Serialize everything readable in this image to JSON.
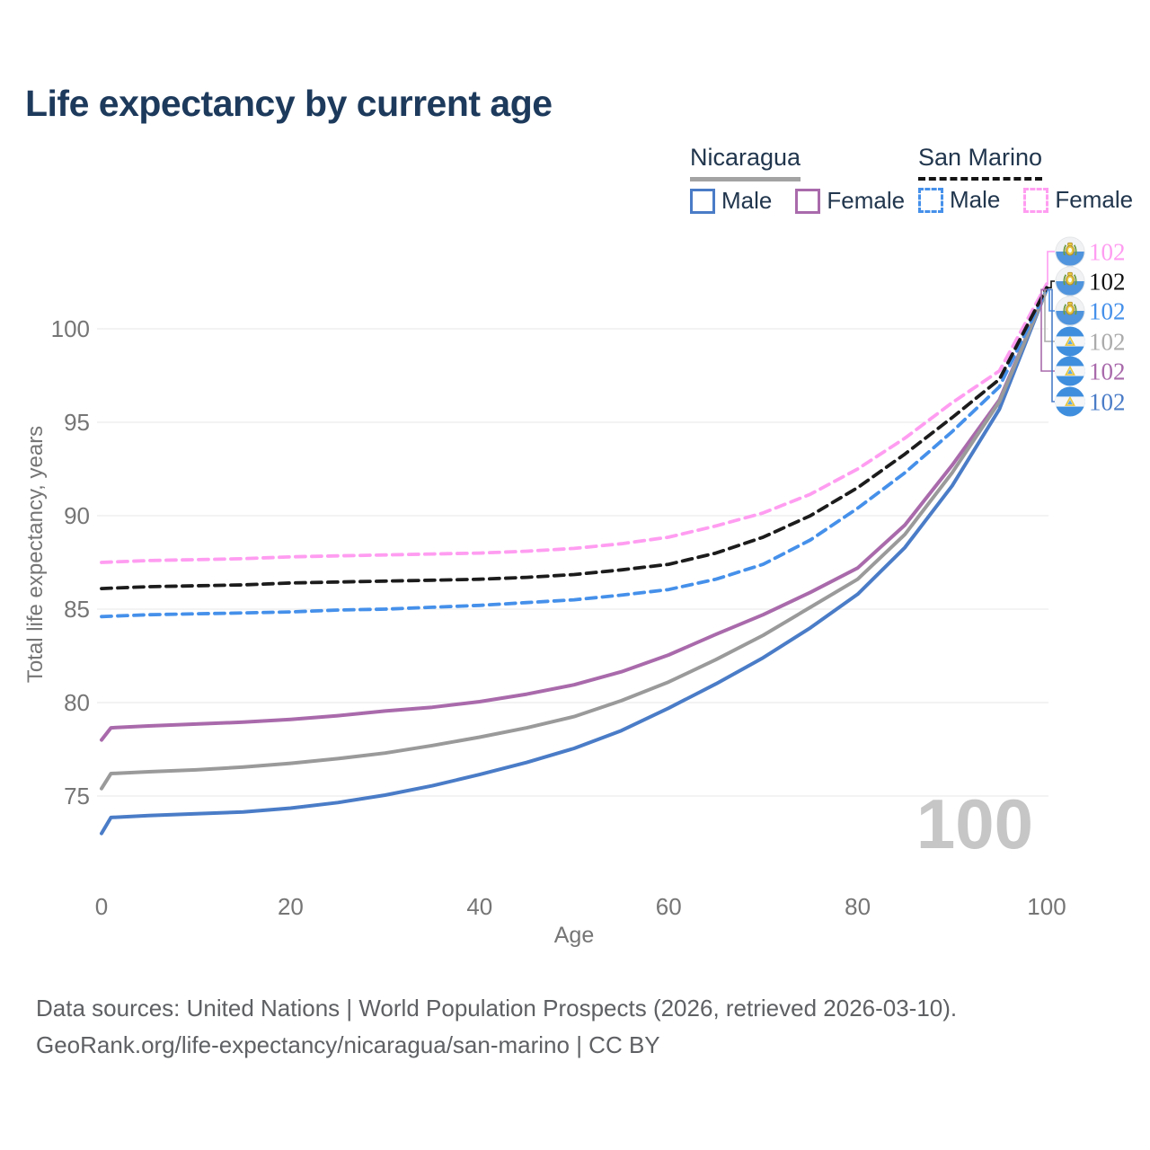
{
  "title": "Life expectancy by current age",
  "legend": {
    "groups": [
      {
        "label": "Nicaragua",
        "line_style": "solid",
        "underline_color": "#a3a3a3",
        "items": [
          {
            "label": "Male"
          },
          {
            "label": "Female"
          }
        ]
      },
      {
        "label": "San Marino",
        "line_style": "dashed",
        "underline_color": "#141414",
        "items": [
          {
            "label": "Male"
          },
          {
            "label": "Female"
          }
        ]
      }
    ]
  },
  "chart_data": {
    "type": "line",
    "title": "Life expectancy by current age",
    "xlabel": "Age",
    "ylabel": "Total life expectancy, years",
    "xlim": [
      0,
      100
    ],
    "ylim": [
      72.5,
      103
    ],
    "x_ticks": [
      0,
      20,
      40,
      60,
      80,
      100
    ],
    "y_ticks": [
      75,
      80,
      85,
      90,
      95,
      100
    ],
    "grid": "horizontal",
    "legend_position": "top-right",
    "series": [
      {
        "name": "Nicaragua Male",
        "country": "Nicaragua",
        "sex": "Male",
        "color": "#4a7cc7",
        "dash": false,
        "points": [
          [
            0,
            73.0
          ],
          [
            1,
            73.85
          ],
          [
            5,
            73.95
          ],
          [
            10,
            74.05
          ],
          [
            15,
            74.15
          ],
          [
            20,
            74.35
          ],
          [
            25,
            74.65
          ],
          [
            30,
            75.05
          ],
          [
            35,
            75.55
          ],
          [
            40,
            76.15
          ],
          [
            45,
            76.8
          ],
          [
            50,
            77.55
          ],
          [
            55,
            78.5
          ],
          [
            60,
            79.7
          ],
          [
            65,
            81.0
          ],
          [
            70,
            82.4
          ],
          [
            75,
            84.0
          ],
          [
            80,
            85.8
          ],
          [
            85,
            88.3
          ],
          [
            90,
            91.6
          ],
          [
            95,
            95.7
          ],
          [
            100,
            102.1
          ]
        ]
      },
      {
        "name": "Nicaragua Female",
        "country": "Nicaragua",
        "sex": "Female",
        "color": "#a96aab",
        "dash": false,
        "points": [
          [
            0,
            78.0
          ],
          [
            1,
            78.65
          ],
          [
            5,
            78.75
          ],
          [
            10,
            78.85
          ],
          [
            15,
            78.95
          ],
          [
            20,
            79.1
          ],
          [
            25,
            79.3
          ],
          [
            30,
            79.55
          ],
          [
            35,
            79.75
          ],
          [
            40,
            80.05
          ],
          [
            45,
            80.45
          ],
          [
            50,
            80.95
          ],
          [
            55,
            81.65
          ],
          [
            60,
            82.55
          ],
          [
            65,
            83.65
          ],
          [
            70,
            84.7
          ],
          [
            75,
            85.9
          ],
          [
            80,
            87.2
          ],
          [
            85,
            89.5
          ],
          [
            90,
            92.7
          ],
          [
            95,
            96.2
          ],
          [
            100,
            102.1
          ]
        ]
      },
      {
        "name": "Nicaragua Total",
        "country": "Nicaragua",
        "sex": "Both",
        "color": "#9a9a9a",
        "dash": false,
        "points": [
          [
            0,
            75.4
          ],
          [
            1,
            76.2
          ],
          [
            5,
            76.3
          ],
          [
            10,
            76.4
          ],
          [
            15,
            76.55
          ],
          [
            20,
            76.75
          ],
          [
            25,
            77.0
          ],
          [
            30,
            77.3
          ],
          [
            35,
            77.7
          ],
          [
            40,
            78.15
          ],
          [
            45,
            78.65
          ],
          [
            50,
            79.25
          ],
          [
            55,
            80.1
          ],
          [
            60,
            81.1
          ],
          [
            65,
            82.3
          ],
          [
            70,
            83.6
          ],
          [
            75,
            85.1
          ],
          [
            80,
            86.6
          ],
          [
            85,
            89.0
          ],
          [
            90,
            92.3
          ],
          [
            95,
            96.1
          ],
          [
            100,
            102.1
          ]
        ]
      },
      {
        "name": "San Marino Male",
        "country": "San Marino",
        "sex": "Male",
        "color": "#4590ea",
        "dash": true,
        "points": [
          [
            0,
            84.6
          ],
          [
            5,
            84.7
          ],
          [
            10,
            84.75
          ],
          [
            15,
            84.8
          ],
          [
            20,
            84.85
          ],
          [
            25,
            84.95
          ],
          [
            30,
            85.0
          ],
          [
            35,
            85.1
          ],
          [
            40,
            85.2
          ],
          [
            45,
            85.35
          ],
          [
            50,
            85.5
          ],
          [
            55,
            85.75
          ],
          [
            60,
            86.05
          ],
          [
            65,
            86.6
          ],
          [
            70,
            87.4
          ],
          [
            75,
            88.7
          ],
          [
            80,
            90.4
          ],
          [
            85,
            92.3
          ],
          [
            90,
            94.5
          ],
          [
            95,
            96.9
          ],
          [
            100,
            102.1
          ]
        ]
      },
      {
        "name": "San Marino Female",
        "country": "San Marino",
        "sex": "Female",
        "color": "#ff9df1",
        "dash": true,
        "points": [
          [
            0,
            87.5
          ],
          [
            5,
            87.6
          ],
          [
            10,
            87.65
          ],
          [
            15,
            87.7
          ],
          [
            20,
            87.8
          ],
          [
            25,
            87.85
          ],
          [
            30,
            87.9
          ],
          [
            35,
            87.95
          ],
          [
            40,
            88.0
          ],
          [
            45,
            88.1
          ],
          [
            50,
            88.25
          ],
          [
            55,
            88.5
          ],
          [
            60,
            88.85
          ],
          [
            65,
            89.45
          ],
          [
            70,
            90.15
          ],
          [
            75,
            91.15
          ],
          [
            80,
            92.5
          ],
          [
            85,
            94.15
          ],
          [
            90,
            96.05
          ],
          [
            95,
            97.75
          ],
          [
            100,
            102.4
          ]
        ]
      },
      {
        "name": "San Marino Total",
        "country": "San Marino",
        "sex": "Both",
        "color": "#1c1c1c",
        "dash": true,
        "points": [
          [
            0,
            86.1
          ],
          [
            5,
            86.2
          ],
          [
            10,
            86.25
          ],
          [
            15,
            86.3
          ],
          [
            20,
            86.4
          ],
          [
            25,
            86.45
          ],
          [
            30,
            86.5
          ],
          [
            35,
            86.55
          ],
          [
            40,
            86.6
          ],
          [
            45,
            86.7
          ],
          [
            50,
            86.85
          ],
          [
            55,
            87.1
          ],
          [
            60,
            87.4
          ],
          [
            65,
            88.0
          ],
          [
            70,
            88.85
          ],
          [
            75,
            90.0
          ],
          [
            80,
            91.5
          ],
          [
            85,
            93.3
          ],
          [
            90,
            95.25
          ],
          [
            95,
            97.3
          ],
          [
            100,
            102.2
          ]
        ]
      }
    ],
    "end_labels": [
      {
        "text": "102",
        "color": "#ff9df1",
        "flag": "san-marino",
        "series_index": 4
      },
      {
        "text": "102",
        "color": "#111111",
        "flag": "san-marino",
        "series_index": 5
      },
      {
        "text": "102",
        "color": "#4590ea",
        "flag": "san-marino",
        "series_index": 3
      },
      {
        "text": "102",
        "color": "#ababab",
        "flag": "nicaragua",
        "series_index": 2
      },
      {
        "text": "102",
        "color": "#a96aab",
        "flag": "nicaragua",
        "series_index": 1
      },
      {
        "text": "102",
        "color": "#4a7cc7",
        "flag": "nicaragua",
        "series_index": 0
      }
    ]
  },
  "watermark": "100",
  "footer": {
    "line1": "Data sources: United Nations | World Population Prospects (2026, retrieved 2026-03-10).",
    "line2": "GeoRank.org/life-expectancy/nicaragua/san-marino | CC BY"
  }
}
